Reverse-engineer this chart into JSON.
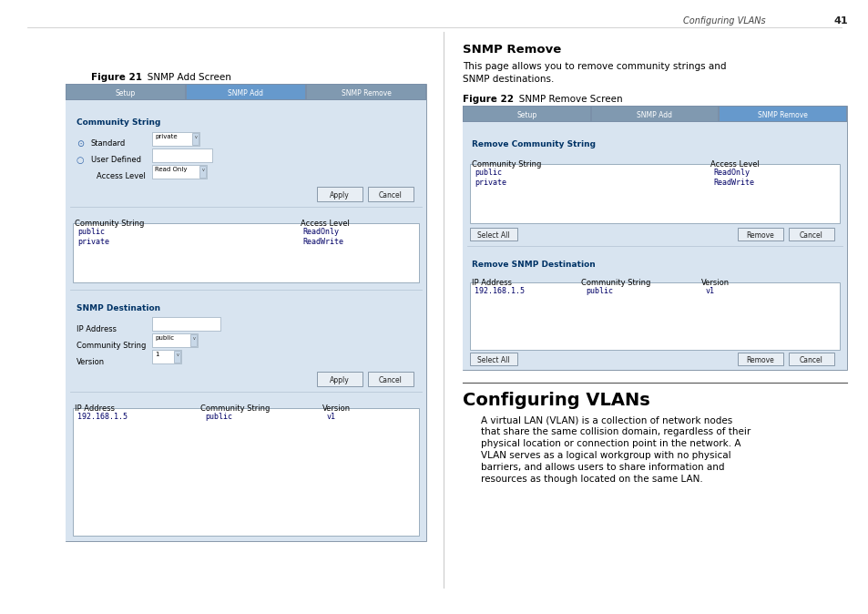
{
  "page_bg": "#ffffff",
  "header_text": "Configuring VLANs",
  "header_page": "41",
  "fig21_label_bold": "Figure 21",
  "fig21_label_normal": "   SNMP Add Screen",
  "fig22_label_bold": "Figure 22",
  "fig22_label_normal": "   SNMP Remove Screen",
  "tab_bar_color": "#7a8fa8",
  "tab_selected_color": "#6699cc",
  "tab_unselected_color": "#8099b0",
  "panel_content_bg": "#d8e4f0",
  "panel_border_color": "#8899aa",
  "table_area_bg": "#ffffff",
  "table_border_color": "#9aadbe",
  "btn_bg": "#e8eef4",
  "btn_border": "#8899aa",
  "input_bg": "#ffffff",
  "input_border": "#9aadbe",
  "section_text_color": "#003366",
  "mono_color": "#000066",
  "header_line_color": "#bbbbbb",
  "snmp_remove_title": "SNMP Remove",
  "snmp_remove_desc1": "This page allows you to remove community strings and",
  "snmp_remove_desc2": "SNMP destinations.",
  "configuring_title": "Configuring VLANs",
  "configuring_para_lines": [
    "A virtual LAN (VLAN) is a collection of network nodes",
    "that share the same collision domain, regardless of their",
    "physical location or connection point in the network. A",
    "VLAN serves as a logical workgroup with no physical",
    "barriers, and allows users to share information and",
    "resources as though located on the same LAN."
  ]
}
